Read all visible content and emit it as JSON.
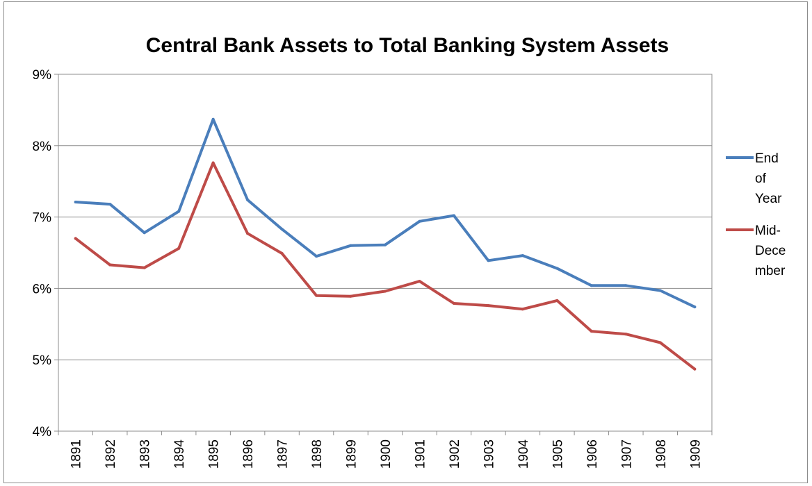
{
  "chart_data": {
    "type": "line",
    "title": "Central Bank Assets to Total Banking System Assets",
    "xlabel": "",
    "ylabel": "",
    "categories": [
      "1891",
      "1892",
      "1893",
      "1894",
      "1895",
      "1896",
      "1897",
      "1898",
      "1899",
      "1900",
      "1901",
      "1902",
      "1903",
      "1904",
      "1905",
      "1906",
      "1907",
      "1908",
      "1909"
    ],
    "ylim": [
      4,
      9
    ],
    "y_ticks": [
      4,
      5,
      6,
      7,
      8,
      9
    ],
    "y_tick_labels": [
      "4%",
      "5%",
      "6%",
      "7%",
      "8%",
      "9%"
    ],
    "y_unit": "%",
    "grid": true,
    "legend_position": "right",
    "series": [
      {
        "name": "End of Year",
        "legend_lines": [
          "End",
          "of",
          "Year"
        ],
        "color": "#4a7ebb",
        "values": [
          7.21,
          7.18,
          6.78,
          7.08,
          8.37,
          7.24,
          6.83,
          6.45,
          6.6,
          6.61,
          6.94,
          7.02,
          6.39,
          6.46,
          6.28,
          6.04,
          6.04,
          5.97,
          5.74
        ]
      },
      {
        "name": "Mid-December",
        "legend_lines": [
          "Mid-",
          "Dece",
          "mber"
        ],
        "color": "#be4b48",
        "values": [
          6.7,
          6.33,
          6.29,
          6.56,
          7.76,
          6.77,
          6.49,
          5.9,
          5.89,
          5.96,
          6.1,
          5.79,
          5.76,
          5.71,
          5.83,
          5.4,
          5.36,
          5.24,
          4.87
        ]
      }
    ]
  }
}
